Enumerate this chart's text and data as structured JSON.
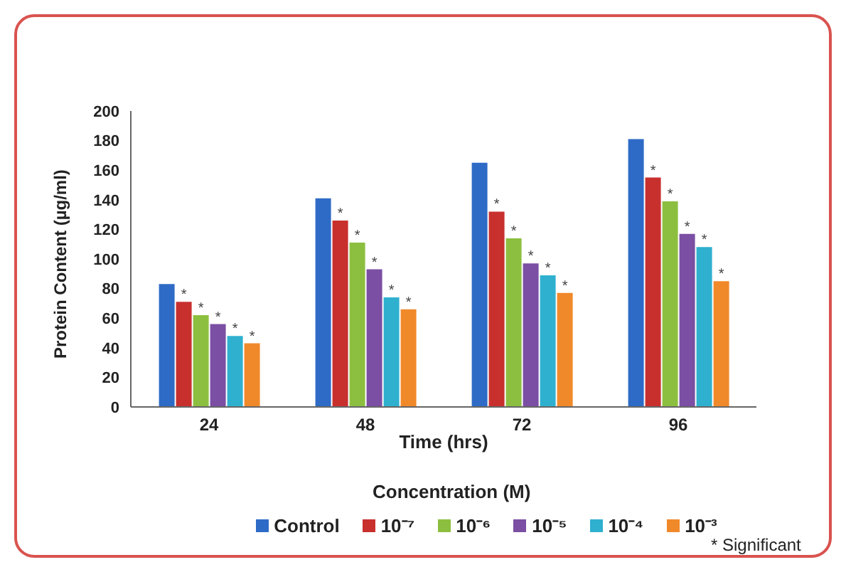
{
  "chart_data": {
    "type": "bar",
    "xlabel": "Time (hrs)",
    "ylabel": "Protein Content (µg/ml)",
    "categories": [
      "24",
      "48",
      "72",
      "96"
    ],
    "series": [
      {
        "name": "Control",
        "color": "#2e6bc6",
        "values": [
          83,
          141,
          165,
          181
        ]
      },
      {
        "name": "10⁻⁷",
        "color": "#c8302e",
        "values": [
          71,
          126,
          132,
          155
        ],
        "value_labels": [
          "*",
          "*",
          "*",
          "*"
        ]
      },
      {
        "name": "10⁻⁶",
        "color": "#8cbf3f",
        "values": [
          62,
          111,
          114,
          139
        ],
        "value_labels": [
          "*",
          "*",
          "*",
          "*"
        ]
      },
      {
        "name": "10⁻⁵",
        "color": "#7b4fa3",
        "values": [
          56,
          93,
          97,
          117
        ],
        "value_labels": [
          "*",
          "*",
          "*",
          "*"
        ]
      },
      {
        "name": "10⁻⁴",
        "color": "#2fb0cf",
        "values": [
          48,
          74,
          89,
          108
        ],
        "value_labels": [
          "*",
          "*",
          "*",
          "*"
        ]
      },
      {
        "name": "10⁻³",
        "color": "#f0892a",
        "values": [
          43,
          66,
          77,
          85
        ],
        "value_labels": [
          "*",
          "*",
          "*",
          "*"
        ]
      }
    ],
    "ylim": [
      0,
      200
    ],
    "yticks": [
      0,
      20,
      40,
      60,
      80,
      100,
      120,
      140,
      160,
      180,
      200
    ],
    "grid": false,
    "legend": "bottom",
    "annotations": [
      "Concentration (M)",
      "* Significant"
    ]
  }
}
